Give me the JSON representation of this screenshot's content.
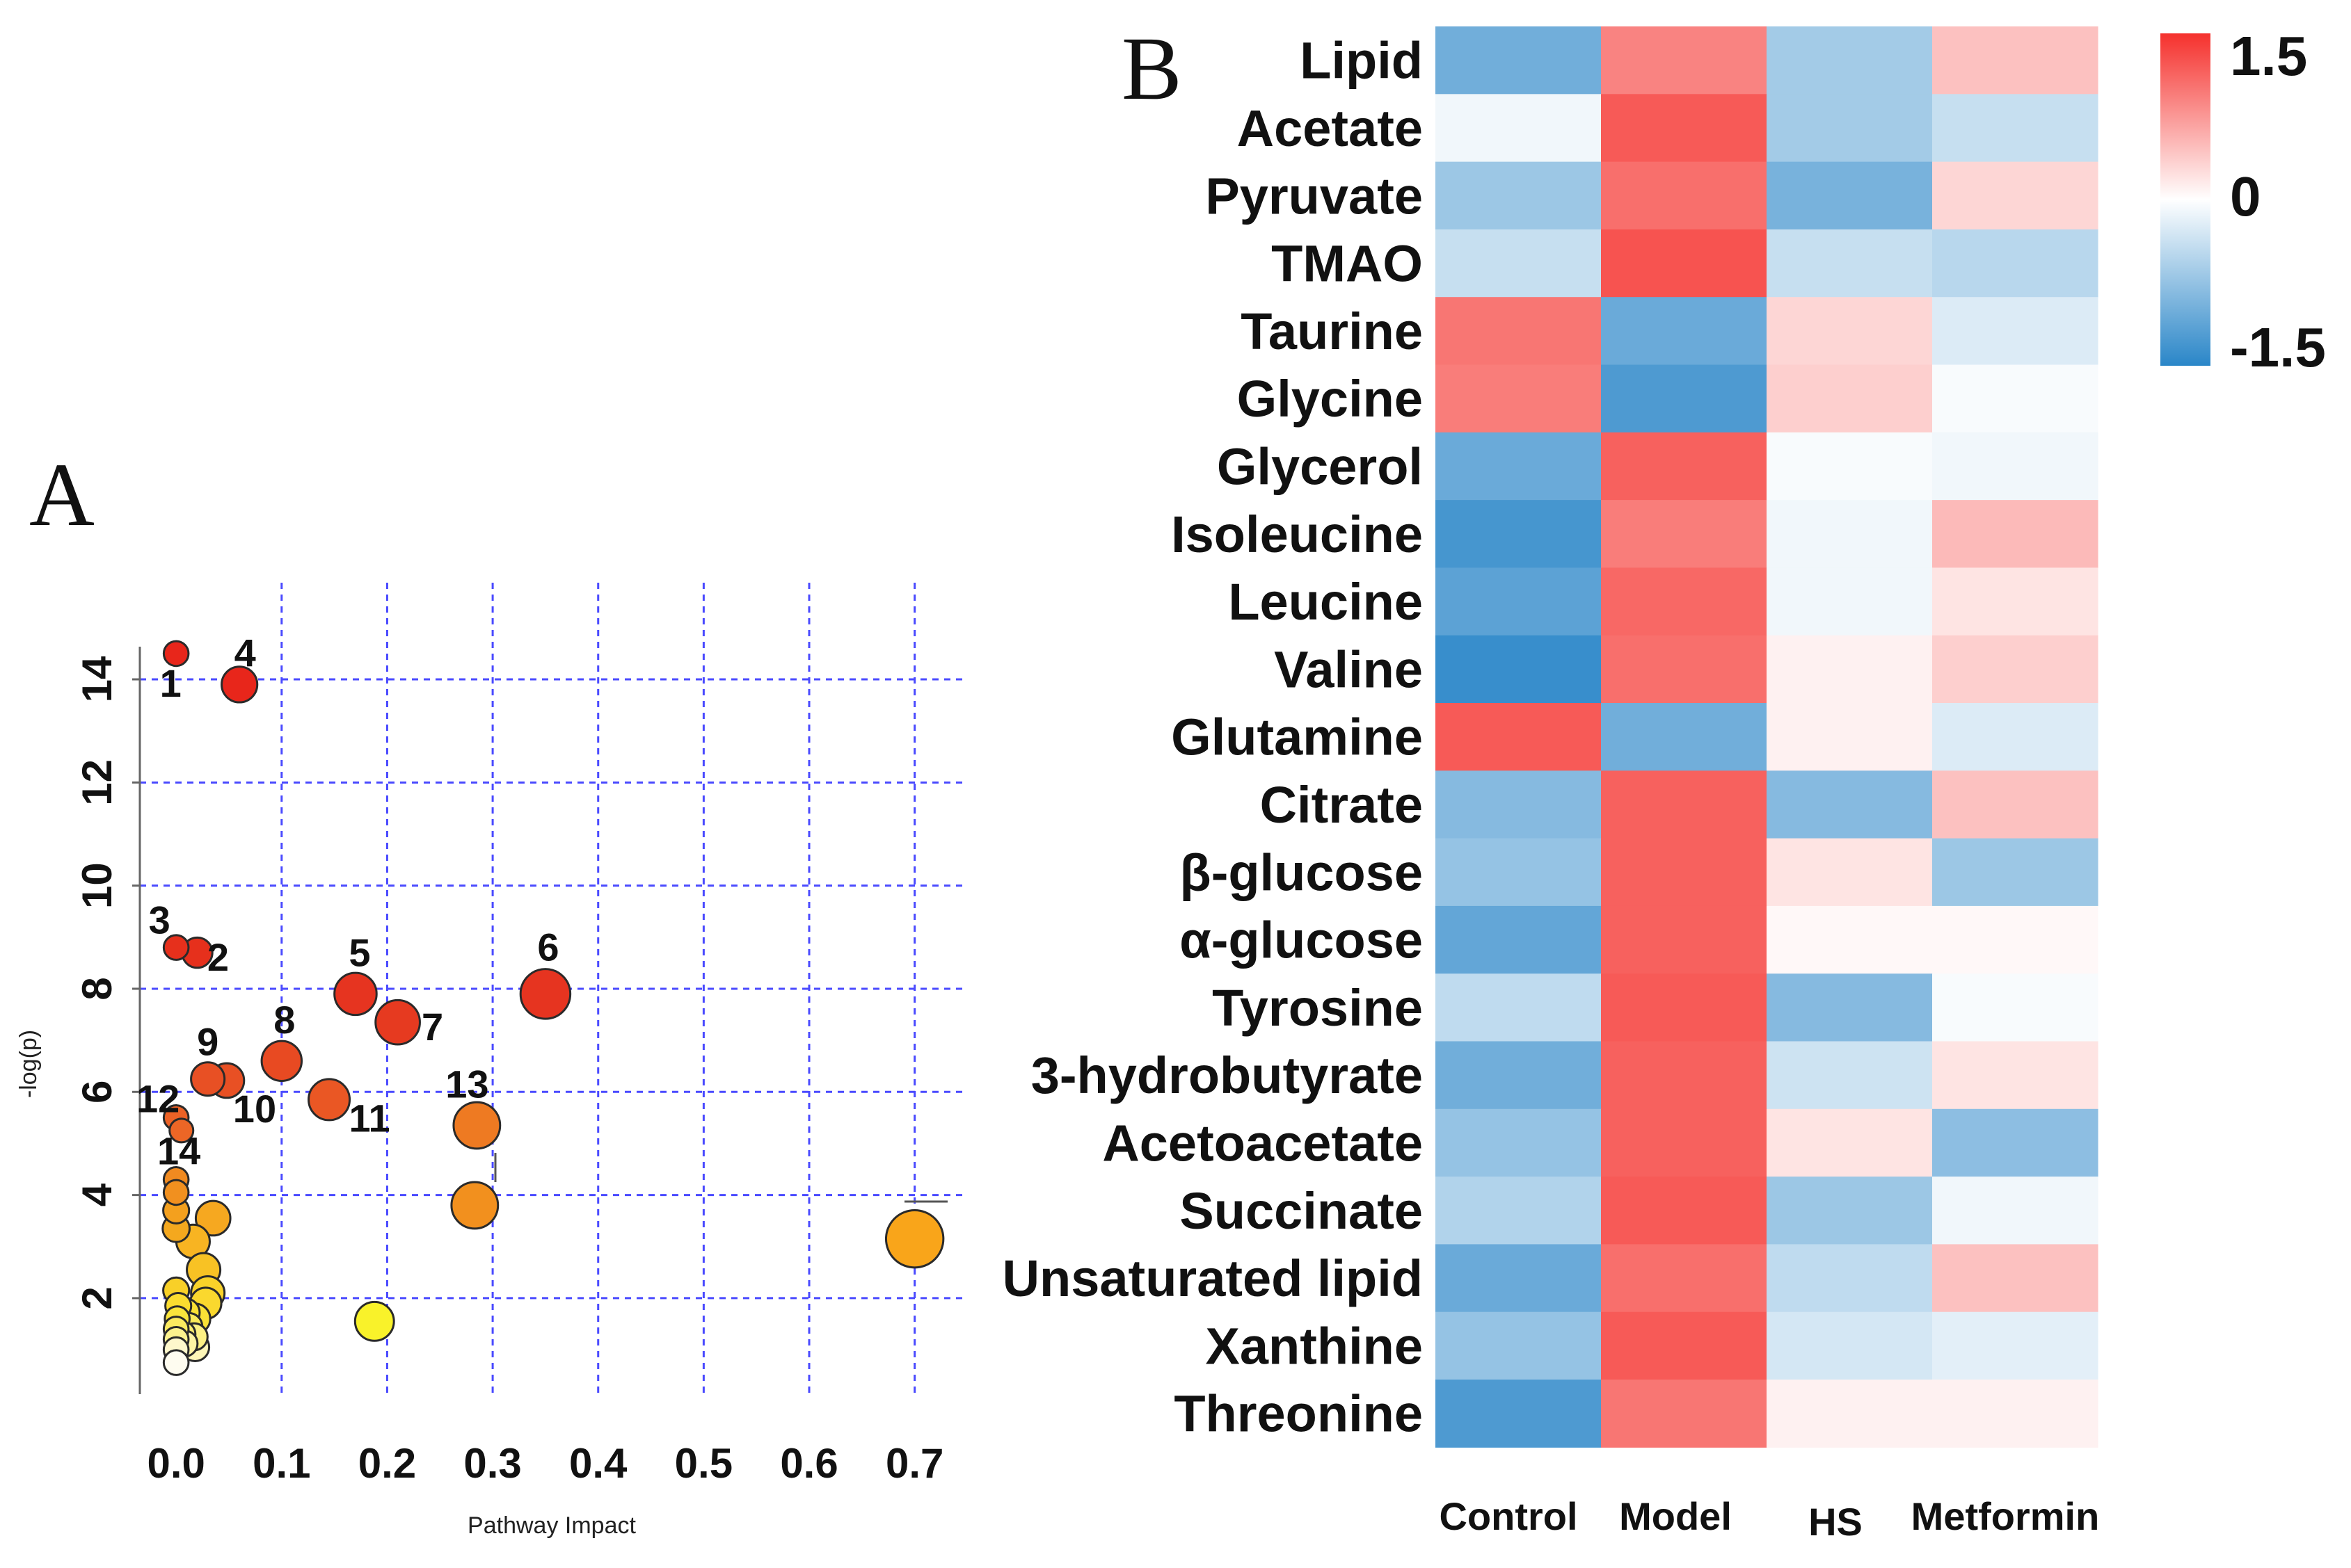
{
  "chart_data": [
    {
      "type": "scatter",
      "panel_label": "A",
      "title": "",
      "xlabel": "Pathway Impact",
      "ylabel": "-log(p)",
      "xlim": [
        -0.01,
        0.72
      ],
      "ylim": [
        0.3,
        15.2
      ],
      "x_ticks": [
        0.0,
        0.1,
        0.2,
        0.3,
        0.4,
        0.5,
        0.6,
        0.7
      ],
      "x_tick_labels": [
        "0.0",
        "0.1",
        "0.2",
        "0.3",
        "0.4",
        "0.5",
        "0.6",
        "0.7"
      ],
      "y_ticks": [
        2,
        4,
        6,
        8,
        10,
        12,
        14
      ],
      "y_tick_labels": [
        "2",
        "4",
        "6",
        "8",
        "10",
        "12",
        "14"
      ],
      "grid": true,
      "color_scale": "yellow (low -log p) to red (high -log p); marker size ~ pathway impact",
      "points": [
        {
          "label": "1",
          "x": 0.0,
          "y": 14.5,
          "size": 1,
          "color": "#e8261b"
        },
        {
          "label": "4",
          "x": 0.06,
          "y": 13.9,
          "size": 2,
          "color": "#e8261b"
        },
        {
          "label": "3",
          "x": 0.0,
          "y": 8.8,
          "size": 1,
          "color": "#e6301c"
        },
        {
          "label": "2",
          "x": 0.02,
          "y": 8.7,
          "size": 1.5,
          "color": "#e6301c"
        },
        {
          "label": "5",
          "x": 0.17,
          "y": 7.9,
          "size": 2.6,
          "color": "#e63420"
        },
        {
          "label": "6",
          "x": 0.35,
          "y": 7.9,
          "size": 3.3,
          "color": "#e63420"
        },
        {
          "label": "7",
          "x": 0.21,
          "y": 7.35,
          "size": 2.8,
          "color": "#e63a20"
        },
        {
          "label": "8",
          "x": 0.1,
          "y": 6.6,
          "size": 2.4,
          "color": "#e84a22"
        },
        {
          "label": "9",
          "x": 0.03,
          "y": 6.25,
          "size": 1.8,
          "color": "#e85024"
        },
        {
          "label": "10",
          "x": 0.048,
          "y": 6.22,
          "size": 1.9,
          "color": "#e85024"
        },
        {
          "label": "11",
          "x": 0.145,
          "y": 5.85,
          "size": 2.5,
          "color": "#ea5724"
        },
        {
          "label": "12",
          "x": 0.0,
          "y": 5.5,
          "size": 1,
          "color": "#ec6226"
        },
        {
          "label": "",
          "x": 0.005,
          "y": 5.25,
          "size": 0.9,
          "color": "#ec6626"
        },
        {
          "label": "13",
          "x": 0.285,
          "y": 5.35,
          "size": 3.0,
          "color": "#ee7a22"
        },
        {
          "label": "14",
          "x": 0.0,
          "y": 4.3,
          "size": 1,
          "color": "#f08a20"
        },
        {
          "label": "",
          "x": 0.0,
          "y": 4.05,
          "size": 1,
          "color": "#f1901f"
        },
        {
          "label": "",
          "x": 0.0,
          "y": 3.7,
          "size": 1.1,
          "color": "#f4a01e"
        },
        {
          "label": "",
          "x": 0.0,
          "y": 3.35,
          "size": 1.2,
          "color": "#f4a81e"
        },
        {
          "label": "",
          "x": 0.283,
          "y": 3.8,
          "size": 3.0,
          "color": "#f2901e"
        },
        {
          "label": "",
          "x": 0.035,
          "y": 3.55,
          "size": 1.9,
          "color": "#f6a820"
        },
        {
          "label": "",
          "x": 0.016,
          "y": 3.1,
          "size": 1.8,
          "color": "#f8b422"
        },
        {
          "label": "",
          "x": 0.7,
          "y": 3.15,
          "size": 4.0,
          "color": "#f9a51a"
        },
        {
          "label": "",
          "x": 0.026,
          "y": 2.55,
          "size": 1.8,
          "color": "#f8c224"
        },
        {
          "label": "",
          "x": 0.0,
          "y": 2.15,
          "size": 1.1,
          "color": "#f8d028"
        },
        {
          "label": "",
          "x": 0.03,
          "y": 2.1,
          "size": 1.8,
          "color": "#f9d22a"
        },
        {
          "label": "",
          "x": 0.028,
          "y": 1.9,
          "size": 1.6,
          "color": "#fad82e"
        },
        {
          "label": "",
          "x": 0.002,
          "y": 1.85,
          "size": 1.1,
          "color": "#fadc30"
        },
        {
          "label": "",
          "x": 0.009,
          "y": 1.72,
          "size": 1.3,
          "color": "#fae034"
        },
        {
          "label": "",
          "x": 0.018,
          "y": 1.6,
          "size": 1.5,
          "color": "#fae236"
        },
        {
          "label": "",
          "x": 0.188,
          "y": 1.55,
          "size": 2.3,
          "color": "#f9f22a"
        },
        {
          "label": "",
          "x": 0.001,
          "y": 1.6,
          "size": 1.0,
          "color": "#fae43c"
        },
        {
          "label": "",
          "x": 0.004,
          "y": 1.5,
          "size": 1.2,
          "color": "#fbe64a"
        },
        {
          "label": "",
          "x": 0.012,
          "y": 1.45,
          "size": 1.2,
          "color": "#fbea5a"
        },
        {
          "label": "",
          "x": 0.0,
          "y": 1.4,
          "size": 1.0,
          "color": "#fbea60"
        },
        {
          "label": "",
          "x": 0.006,
          "y": 1.3,
          "size": 1.1,
          "color": "#fcee72"
        },
        {
          "label": "",
          "x": 0.017,
          "y": 1.25,
          "size": 1.2,
          "color": "#fcf084"
        },
        {
          "label": "",
          "x": 0.0,
          "y": 1.2,
          "size": 1.0,
          "color": "#fcf28e"
        },
        {
          "label": "",
          "x": 0.008,
          "y": 1.12,
          "size": 1.1,
          "color": "#fdf4a4"
        },
        {
          "label": "",
          "x": 0.018,
          "y": 1.05,
          "size": 1.3,
          "color": "#fdf6b8"
        },
        {
          "label": "",
          "x": 0.0,
          "y": 1.0,
          "size": 1.0,
          "color": "#fef8cc"
        },
        {
          "label": "",
          "x": 0.0,
          "y": 0.75,
          "size": 1.0,
          "color": "#fefcf0"
        }
      ]
    },
    {
      "type": "heatmap",
      "panel_label": "B",
      "title": "",
      "columns": [
        "Control",
        "Model",
        "HS",
        "Metformin"
      ],
      "rows": [
        "Lipid",
        "Acetate",
        "Pyruvate",
        "TMAO",
        "Taurine",
        "Glycine",
        "Glycerol",
        "Isoleucine",
        "Leucine",
        "Valine",
        "Glutamine",
        "Citrate",
        "β-glucose",
        "α-glucose",
        "Tyrosine",
        "3-hydrobutyrate",
        "Acetoacetate",
        "Succinate",
        "Unsaturated lipid",
        "Xanthine",
        "Threonine"
      ],
      "values": [
        [
          -1.0,
          0.9,
          -0.65,
          0.45
        ],
        [
          -0.1,
          1.2,
          -0.65,
          -0.4
        ],
        [
          -0.7,
          1.05,
          -0.95,
          0.3
        ],
        [
          -0.4,
          1.25,
          -0.4,
          -0.5
        ],
        [
          1.0,
          -1.05,
          0.3,
          -0.25
        ],
        [
          0.95,
          -1.25,
          0.35,
          -0.05
        ],
        [
          -1.05,
          1.15,
          -0.05,
          -0.1
        ],
        [
          -1.3,
          0.95,
          -0.1,
          0.5
        ],
        [
          -1.15,
          1.1,
          -0.1,
          0.2
        ],
        [
          -1.4,
          1.05,
          0.1,
          0.35
        ],
        [
          1.2,
          -1.0,
          0.1,
          -0.25
        ],
        [
          -0.85,
          1.15,
          -0.85,
          0.45
        ],
        [
          -0.75,
          1.15,
          0.2,
          -0.7
        ],
        [
          -1.1,
          1.15,
          0.05,
          0.05
        ],
        [
          -0.45,
          1.2,
          -0.85,
          -0.05
        ],
        [
          -1.0,
          1.15,
          -0.35,
          0.2
        ],
        [
          -0.75,
          1.15,
          0.2,
          -0.8
        ],
        [
          -0.55,
          1.2,
          -0.7,
          -0.1
        ],
        [
          -1.05,
          1.05,
          -0.45,
          0.45
        ],
        [
          -0.75,
          1.2,
          -0.3,
          -0.2
        ],
        [
          -1.25,
          1.0,
          0.1,
          0.1
        ]
      ],
      "colorbar": {
        "min": -1.5,
        "max": 1.5,
        "tick_labels": [
          "1.5",
          "0",
          "-1.5"
        ],
        "low_color": "#2a86c8",
        "mid_color": "#ffffff",
        "high_color": "#f5312d"
      }
    }
  ]
}
